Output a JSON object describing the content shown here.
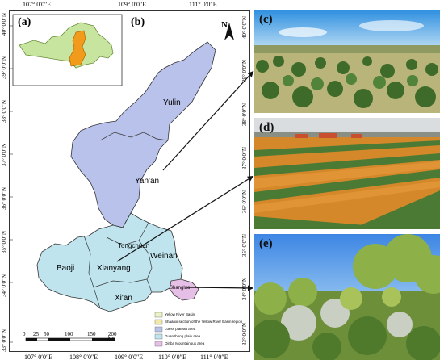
{
  "panels": {
    "a": "(a)",
    "b": "(b)",
    "c": "(c)",
    "d": "(d)",
    "e": "(e)"
  },
  "north": "N",
  "lon_ticks": {
    "top": [
      "107° 0′0″E",
      "109° 0′0″E",
      "111° 0′0″E"
    ],
    "bottom": [
      "107° 0′0″E",
      "108° 0′0″E",
      "109° 0′0″E",
      "110° 0′0″E",
      "111° 0′0″E"
    ]
  },
  "lat_ticks": {
    "left": [
      "40° 0′0″N",
      "39° 0′0″N",
      "38° 0′0″N",
      "37° 0′0″N",
      "36° 0′0″N",
      "35° 0′0″N",
      "34° 0′0″N",
      "33° 0′0″N"
    ],
    "right": [
      "40° 0′0″N",
      "39° 0′0″N",
      "38° 0′0″N",
      "37° 0′0″N",
      "36° 0′0″N",
      "35° 0′0″N",
      "34° 0′0″N",
      "33° 0′0″N"
    ]
  },
  "cities": {
    "yulin": "Yulin",
    "yanan": "Yan'an",
    "tongchuan": "Tongchuan",
    "baoji": "Baoji",
    "xianyang": "Xianyang",
    "weinan": "Weinan",
    "xian": "Xi'an",
    "shangluo": "Shangluo"
  },
  "legend": [
    {
      "label": "Yellow River Basin",
      "color": "#e9f3c4"
    },
    {
      "label": "Shaanxi section of the Yellow River Basin region",
      "color": "#f2e9a8"
    },
    {
      "label": "Loess plateau area",
      "color": "#b9c2ea"
    },
    {
      "label": "Guanzhong plain area",
      "color": "#bfe4ee"
    },
    {
      "label": "Qinba Mountainous area",
      "color": "#e6bfe6"
    }
  ],
  "scale": {
    "ticks": [
      "0",
      "25",
      "50",
      "100",
      "150",
      "200"
    ],
    "unit": "km"
  },
  "colors": {
    "loess": "#b9c2ea",
    "guanzhong": "#bfe4ee",
    "qinba": "#e6bfe6",
    "inset_basin": "#c8e5a0",
    "inset_highlight": "#f29a1c"
  }
}
